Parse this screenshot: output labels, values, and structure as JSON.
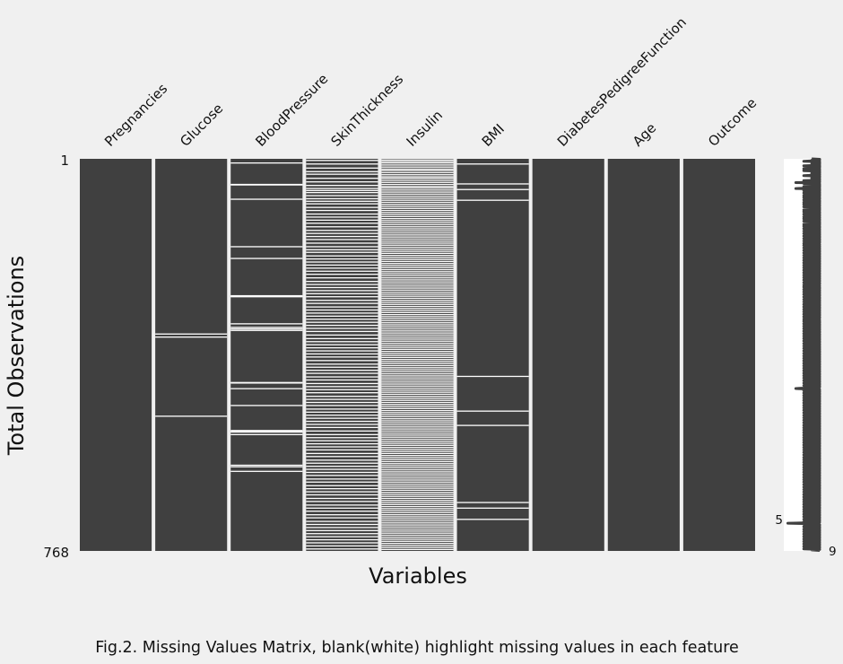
{
  "chart_data": {
    "type": "heatmap",
    "xlabel": "Variables",
    "ylabel": "Total Observations",
    "rows": 768,
    "y_tick_labels": [
      "1",
      "768"
    ],
    "colors": {
      "present": "#404040",
      "missing": "#ffffff",
      "background": "#f0f0f0"
    },
    "grid": false,
    "columns": [
      {
        "name": "Pregnancies",
        "missing_rows": []
      },
      {
        "name": "Glucose",
        "missing_rows": [
          343,
          349,
          504
        ]
      },
      {
        "name": "BloodPressure",
        "missing_rows": [
          8,
          50,
          51,
          79,
          172,
          195,
          268,
          269,
          270,
          323,
          330,
          333,
          336,
          438,
          439,
          450,
          483,
          532,
          534,
          535,
          540,
          600,
          603,
          612
        ]
      },
      {
        "name": "SkinThickness",
        "missing_rows": [
          3,
          10,
          18,
          25,
          30,
          38,
          45,
          52,
          58,
          62,
          66,
          72,
          78,
          83,
          88,
          95,
          101,
          108,
          114,
          120,
          126,
          133,
          140,
          146,
          152,
          158,
          165,
          172,
          178,
          183,
          190,
          196,
          202,
          208,
          214,
          220,
          226,
          233,
          240,
          246,
          252,
          258,
          264,
          270,
          277,
          283,
          290,
          296,
          302,
          308,
          314,
          320,
          326,
          332,
          338,
          345,
          352,
          358,
          364,
          370,
          376,
          382,
          388,
          395,
          402,
          408,
          414,
          420,
          427,
          433,
          440,
          446,
          452,
          458,
          465,
          471,
          477,
          483,
          490,
          496,
          502,
          508,
          514,
          520,
          526,
          533,
          540,
          546,
          552,
          558,
          564,
          570,
          577,
          583,
          590,
          596,
          602,
          608,
          614,
          620,
          627,
          633,
          640,
          646,
          652,
          658,
          665,
          671,
          678,
          684,
          690,
          697,
          703,
          710,
          716,
          722,
          728,
          734,
          740,
          746,
          752,
          758,
          764
        ]
      },
      {
        "name": "Insulin",
        "missing_rows": [
          2,
          5,
          8,
          12,
          16,
          20,
          23,
          27,
          31,
          35,
          38,
          42,
          46,
          50,
          54,
          57,
          61,
          65,
          69,
          73,
          77,
          81,
          85,
          89,
          93,
          97,
          101,
          105,
          109,
          113,
          117,
          121,
          125,
          129,
          133,
          137,
          141,
          145,
          149,
          153,
          157,
          161,
          165,
          169,
          173,
          177,
          181,
          185,
          189,
          193,
          197,
          201,
          205,
          209,
          213,
          217,
          221,
          225,
          229,
          233,
          237,
          241,
          245,
          249,
          253,
          257,
          261,
          265,
          269,
          273,
          277,
          281,
          285,
          289,
          293,
          297,
          301,
          305,
          309,
          313,
          317,
          321,
          325,
          329,
          333,
          337,
          341,
          345,
          349,
          353,
          357,
          361,
          365,
          369,
          373,
          377,
          381,
          385,
          389,
          393,
          397,
          401,
          405,
          409,
          413,
          417,
          421,
          425,
          429,
          433,
          437,
          441,
          445,
          449,
          453,
          457,
          461,
          465,
          469,
          473,
          477,
          481,
          485,
          489,
          493,
          497,
          501,
          505,
          509,
          513,
          517,
          521,
          525,
          529,
          533,
          537,
          541,
          545,
          549,
          553,
          557,
          561,
          565,
          569,
          573,
          577,
          581,
          585,
          589,
          593,
          597,
          601,
          605,
          609,
          613,
          617,
          621,
          625,
          629,
          633,
          637,
          641,
          645,
          649,
          653,
          657,
          661,
          665,
          669,
          673,
          677,
          681,
          685,
          689,
          693,
          697,
          701,
          705,
          709,
          713,
          717,
          721,
          725,
          729,
          733,
          737,
          741,
          745,
          749,
          753,
          757,
          761,
          765
        ]
      },
      {
        "name": "BMI",
        "missing_rows": [
          10,
          49,
          60,
          81,
          426,
          494,
          522,
          673,
          684,
          706
        ]
      },
      {
        "name": "DiabetesPedigreeFunction",
        "missing_rows": []
      },
      {
        "name": "Age",
        "missing_rows": []
      },
      {
        "name": "Outcome",
        "missing_rows": []
      }
    ],
    "sparkline": {
      "min_label": "5",
      "max_label": "9",
      "min_value": 5,
      "max_value": 9,
      "min_row": 708,
      "max_row": 768,
      "complete_per_row": [
        8,
        9,
        9,
        8,
        8,
        7,
        9,
        9,
        8,
        9,
        9,
        8,
        8,
        9,
        7,
        9,
        9,
        8,
        9,
        8,
        7,
        9,
        9,
        8,
        7,
        9,
        8,
        9,
        9,
        8,
        8,
        9,
        9,
        8,
        7,
        9,
        9,
        8,
        9,
        8,
        8,
        9,
        8,
        9,
        7,
        8,
        9,
        9,
        6,
        8,
        7,
        9,
        8,
        9,
        8,
        9,
        7,
        8,
        9,
        8,
        6,
        9,
        8,
        9,
        7,
        9,
        8,
        8,
        9,
        7,
        8,
        9,
        8,
        9,
        7,
        8,
        9,
        8,
        7,
        9,
        8,
        9,
        8,
        7,
        9,
        8,
        9,
        9,
        7,
        8,
        9,
        8,
        7,
        9,
        8,
        9,
        8,
        7,
        9,
        8,
        9,
        8,
        9,
        7,
        8,
        9,
        8,
        7,
        9,
        8,
        9,
        8,
        7,
        9,
        8,
        9,
        8,
        7,
        9,
        9,
        8,
        7,
        9,
        8,
        9,
        8,
        7,
        9,
        8,
        9,
        8,
        9,
        7,
        8,
        9,
        8,
        7,
        9,
        8,
        9,
        8,
        7,
        9,
        8,
        9,
        8,
        7,
        9,
        8,
        9,
        8,
        7,
        9,
        8,
        9,
        8,
        7,
        9,
        8,
        9,
        8,
        7,
        9,
        8,
        9,
        8,
        7,
        9,
        8,
        9,
        8,
        7,
        8,
        9,
        8,
        7,
        9,
        8,
        9,
        8,
        7,
        9,
        8,
        9,
        8,
        7,
        9,
        8,
        9,
        8,
        7,
        9,
        8,
        9,
        8,
        7,
        9,
        8,
        9,
        8,
        7,
        9,
        8,
        9,
        8,
        7,
        9,
        8,
        9,
        8,
        7,
        9,
        8,
        9,
        8,
        7,
        9,
        8,
        9,
        8,
        7,
        9,
        8,
        9,
        8,
        7,
        9,
        8,
        9,
        8,
        7,
        9,
        8,
        9,
        8,
        7,
        9,
        8,
        9,
        8,
        7,
        9,
        8,
        9,
        8,
        7,
        9,
        8,
        9,
        8,
        7,
        9,
        8,
        9,
        8,
        7,
        8,
        9,
        8,
        7,
        9,
        8,
        9,
        8,
        7,
        9,
        8,
        9,
        8,
        7,
        9,
        8,
        9,
        8,
        7,
        9,
        8,
        9,
        8,
        7,
        9,
        8,
        9,
        8,
        7,
        9,
        8,
        9,
        8,
        7,
        9,
        8,
        9,
        8,
        7,
        9,
        8,
        9,
        8,
        7,
        9,
        8,
        9,
        8,
        7,
        9,
        8,
        9,
        8,
        7,
        9,
        8,
        9,
        8,
        7,
        9,
        8,
        9,
        8,
        7,
        9,
        8,
        9,
        8,
        7,
        8,
        9,
        8,
        7,
        9,
        8,
        9,
        8,
        7,
        9,
        8,
        9,
        8,
        7,
        9,
        8,
        9,
        8,
        7,
        9,
        8,
        9,
        8,
        7,
        9,
        8,
        9,
        8,
        7,
        9,
        8,
        9,
        8,
        7,
        9,
        8,
        9,
        8,
        7,
        9,
        8,
        9,
        8,
        7,
        9,
        8,
        9,
        8,
        7,
        9,
        8,
        9,
        8,
        7,
        9,
        8,
        9,
        8,
        7,
        9,
        8,
        9,
        8,
        7,
        9,
        8,
        9,
        8,
        7,
        9,
        8,
        9,
        8,
        7,
        9,
        8,
        9,
        8,
        7,
        9,
        8,
        9,
        8,
        7,
        9,
        8,
        9,
        8,
        7,
        9,
        8,
        9,
        8,
        7,
        9,
        8,
        9,
        8,
        7,
        9,
        8,
        9,
        8,
        7,
        9,
        8,
        9,
        8,
        7,
        9,
        8,
        9,
        8,
        7,
        9,
        8,
        9,
        8,
        7,
        9,
        8,
        9,
        8,
        7,
        9,
        8,
        9,
        8,
        7,
        9,
        8,
        9,
        8,
        7,
        9,
        8,
        9,
        8,
        7,
        6,
        8,
        9,
        8,
        7,
        9,
        8,
        9,
        8,
        7,
        9,
        8,
        9,
        8,
        7,
        9,
        8,
        9,
        8,
        7,
        9,
        8,
        9,
        8,
        7,
        9,
        8,
        9,
        8,
        7,
        9,
        8,
        9,
        8,
        7,
        9,
        8,
        9,
        8,
        7,
        9,
        8,
        9,
        8,
        7,
        9,
        8,
        9,
        8,
        7,
        9,
        8,
        9,
        8,
        7,
        9,
        8,
        9,
        8,
        7,
        9,
        8,
        9,
        8,
        7,
        9,
        8,
        9,
        8,
        7,
        9,
        8,
        9,
        8,
        7,
        9,
        8,
        9,
        8,
        7,
        9,
        8,
        9,
        8,
        7,
        9,
        8,
        9,
        8,
        7,
        9,
        8,
        9,
        8,
        7,
        9,
        8,
        9,
        8,
        7,
        9,
        8,
        9,
        8,
        7,
        9,
        8,
        9,
        8,
        7,
        9,
        8,
        9,
        8,
        7,
        9,
        8,
        9,
        8,
        7,
        9,
        8,
        9,
        8,
        7,
        9,
        8,
        9,
        8,
        7,
        9,
        8,
        9,
        8,
        7,
        9,
        8,
        9,
        8,
        7,
        9,
        8,
        9,
        8,
        7,
        9,
        8,
        9,
        8,
        7,
        9,
        8,
        9,
        8,
        7,
        9,
        8,
        9,
        8,
        7,
        9,
        8,
        9,
        8,
        7,
        9,
        8,
        9,
        8,
        7,
        9,
        8,
        9,
        8,
        7,
        9,
        8,
        9,
        8,
        7,
        9,
        8,
        9,
        8,
        7,
        9,
        8,
        9,
        8,
        7,
        9,
        8,
        9,
        8,
        7,
        9,
        8,
        9,
        8,
        7,
        9,
        8,
        9,
        8,
        7,
        9,
        8,
        9,
        8,
        7,
        9,
        8,
        9,
        8,
        7,
        9,
        8,
        9,
        8,
        7,
        9,
        8,
        9,
        8,
        7,
        9,
        8,
        9,
        8,
        7,
        9,
        8,
        9,
        8,
        7,
        9,
        8,
        9,
        8,
        7,
        9,
        8,
        9,
        8,
        7,
        9,
        8,
        9,
        8,
        7,
        9,
        8,
        9,
        8,
        7,
        9,
        8,
        9,
        8,
        7,
        9,
        8,
        9,
        8,
        7,
        9,
        8,
        9,
        8,
        7,
        9,
        8,
        5,
        8,
        7,
        9,
        8,
        9,
        8,
        7,
        9,
        8,
        9,
        8,
        7,
        9,
        8,
        9,
        8,
        7,
        9,
        8,
        9,
        8,
        7,
        9,
        8,
        9,
        8,
        7,
        9,
        8,
        9,
        8,
        7,
        9,
        8,
        9,
        8,
        7,
        9,
        8,
        9,
        8,
        7,
        9,
        8,
        9,
        8,
        7,
        9,
        8,
        9,
        8,
        7,
        9,
        8,
        9
      ]
    }
  },
  "caption": "Fig.2. Missing Values Matrix, blank(white) highlight missing values in each feature"
}
